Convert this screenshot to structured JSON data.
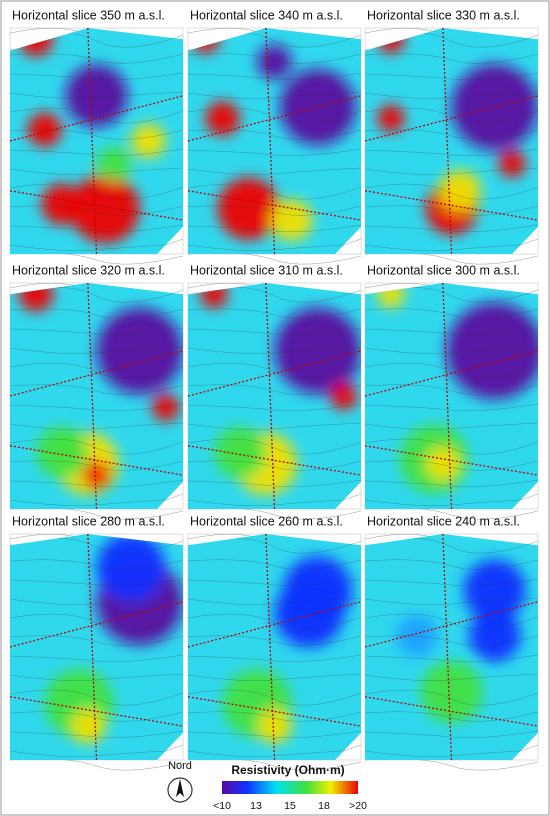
{
  "panels": [
    {
      "title": "Horizontal slice 350 m a.s.l."
    },
    {
      "title": "Horizontal slice 340 m a.s.l."
    },
    {
      "title": "Horizontal slice 330 m a.s.l."
    },
    {
      "title": "Horizontal slice 320 m a.s.l."
    },
    {
      "title": "Horizontal slice 310 m a.s.l."
    },
    {
      "title": "Horizontal slice 300 m a.s.l."
    },
    {
      "title": "Horizontal slice 280 m a.s.l."
    },
    {
      "title": "Horizontal slice 260 m a.s.l."
    },
    {
      "title": "Horizontal slice 240 m a.s.l."
    }
  ],
  "north_label": "Nord",
  "legend": {
    "title": "Resistivity (Ohm·m)",
    "ticks": [
      "<10",
      "13",
      "15",
      "18",
      ">20"
    ]
  }
}
